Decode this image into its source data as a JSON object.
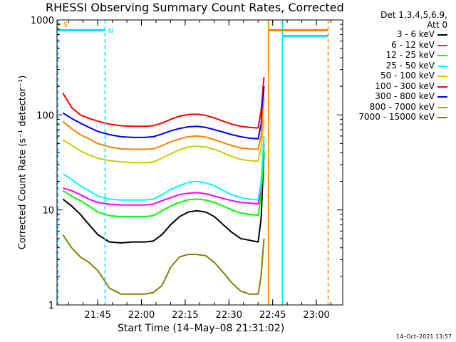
{
  "chart_data": {
    "type": "line",
    "title": "RHESSI Observing Summary Count Rates, Corrected",
    "xlabel": "Start Time (14–May–08 21:31:02)",
    "ylabel": "Corrected Count Rate (s⁻¹ detector⁻¹)",
    "y_scale": "log",
    "ylim": [
      1,
      1000
    ],
    "xlim_minutes": [
      0,
      98
    ],
    "x_ticks": [
      {
        "label": "21:45",
        "minutes": 13.97
      },
      {
        "label": "22:00",
        "minutes": 28.97
      },
      {
        "label": "22:15",
        "minutes": 43.97
      },
      {
        "label": "22:30",
        "minutes": 58.97
      },
      {
        "label": "22:45",
        "minutes": 73.97
      },
      {
        "label": "23:00",
        "minutes": 88.97
      }
    ],
    "y_ticks": [
      {
        "label": "1",
        "value": 1
      },
      {
        "label": "10",
        "value": 10
      },
      {
        "label": "100",
        "value": 100
      },
      {
        "label": "1000",
        "value": 1000
      }
    ],
    "legend_header": [
      "Det 1,3,4,5,6,9,",
      "Att 0"
    ],
    "legend_position": "right",
    "x_minutes": [
      2,
      5,
      8,
      11,
      14,
      18,
      22,
      26,
      30,
      33,
      36,
      39,
      42,
      45,
      48,
      51,
      54,
      57,
      60,
      63,
      66,
      69,
      70,
      71
    ],
    "series": [
      {
        "name": "3 - 6 keV",
        "color": "#000000",
        "values": [
          13,
          11,
          9,
          7,
          5.5,
          4.6,
          4.5,
          4.6,
          4.6,
          4.7,
          5.5,
          7,
          8.5,
          9.5,
          9.8,
          9.5,
          8.5,
          7,
          5.8,
          5,
          4.8,
          4.6,
          8,
          40
        ]
      },
      {
        "name": "6 - 12 keV",
        "color": "#ff00ff",
        "values": [
          17,
          16,
          14.5,
          13,
          12,
          11.5,
          11.3,
          11.3,
          11.3,
          11.5,
          12.5,
          13.5,
          14.5,
          15,
          15.2,
          14.8,
          14,
          13.2,
          12.5,
          12,
          11.8,
          11.6,
          16,
          50
        ]
      },
      {
        "name": "12 - 25 keV",
        "color": "#00ff00",
        "values": [
          16,
          14,
          12.5,
          11,
          9.5,
          8.7,
          8.5,
          8.5,
          8.5,
          8.7,
          9.8,
          11,
          12,
          12.8,
          13,
          12.7,
          12,
          11,
          10,
          9.3,
          9,
          8.8,
          14,
          45
        ]
      },
      {
        "name": "25 - 50 keV",
        "color": "#00ffff",
        "values": [
          24,
          21,
          18,
          16,
          14,
          13,
          12.7,
          12.7,
          12.7,
          13,
          14.5,
          16.5,
          18,
          19.5,
          20,
          19.3,
          18,
          16,
          14.5,
          13.5,
          13,
          12.8,
          20,
          60
        ]
      },
      {
        "name": "50 - 100 keV",
        "color": "#cccc00",
        "values": [
          55,
          48,
          42,
          38,
          35,
          33,
          32,
          31.5,
          31.5,
          32,
          35,
          39,
          43,
          46,
          47,
          46,
          43.5,
          40,
          36.5,
          34,
          33,
          32.5,
          45,
          90
        ]
      },
      {
        "name": "100 - 300 keV",
        "color": "#ff0000",
        "values": [
          170,
          120,
          100,
          92,
          86,
          80,
          77,
          76,
          76,
          77,
          82,
          90,
          97,
          101,
          102,
          99,
          93,
          86,
          80,
          76,
          74,
          73,
          110,
          250
        ]
      },
      {
        "name": "300 - 800 keV",
        "color": "#0000ff",
        "values": [
          105,
          92,
          82,
          74,
          67,
          62,
          59,
          58,
          58,
          59,
          63,
          68,
          72,
          75,
          76,
          74,
          70,
          66,
          62,
          59,
          57,
          56,
          80,
          200
        ]
      },
      {
        "name": "800 - 7000 keV",
        "color": "#ff8000",
        "values": [
          85,
          72,
          62,
          56,
          50,
          46,
          44,
          43.5,
          43.5,
          44,
          47.5,
          52,
          56,
          59,
          60,
          58.5,
          55,
          51,
          47.5,
          45,
          44,
          43.5,
          60,
          150
        ]
      },
      {
        "name": "7000 - 15000 keV",
        "color": "#808000",
        "values": [
          5.5,
          4,
          3.2,
          2.8,
          2.3,
          1.5,
          1.3,
          1.3,
          1.3,
          1.35,
          1.6,
          2.5,
          3.2,
          3.4,
          3.4,
          3.3,
          2.8,
          2.2,
          1.7,
          1.4,
          1.3,
          1.3,
          2,
          5
        ]
      }
    ],
    "flag_bars": [
      {
        "label": "S",
        "color": "#ff8000",
        "value": 900,
        "minutes_from": 0,
        "minutes_to": 1.2
      },
      {
        "label": "N",
        "color": "#00e0ff",
        "value": 780,
        "minutes_from": 0,
        "minutes_to": 16.5
      },
      {
        "label": "",
        "color": "#ff8000",
        "value": 780,
        "minutes_from": 72.5,
        "minutes_to": 93
      },
      {
        "label": "",
        "color": "#00e0ff",
        "value": 680,
        "minutes_from": 77.3,
        "minutes_to": 93
      }
    ],
    "vertical_markers": [
      {
        "color": "#00e0ff",
        "minutes": 0.3,
        "style": "dashed"
      },
      {
        "color": "#00e0ff",
        "minutes": 16.5,
        "style": "dashed"
      },
      {
        "color": "#ff8000",
        "minutes": 72.5,
        "style": "solid"
      },
      {
        "color": "#00e0ff",
        "minutes": 77.3,
        "style": "solid"
      },
      {
        "color": "#ff8000",
        "minutes": 93,
        "style": "dashed"
      }
    ]
  },
  "timestamp": "14–Oct–2021 13:57"
}
